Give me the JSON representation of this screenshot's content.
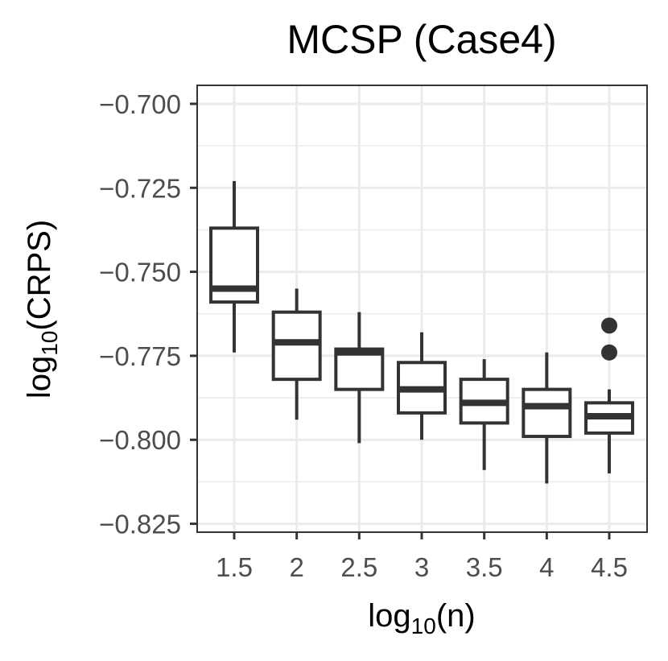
{
  "chart_data": {
    "type": "boxplot",
    "title": "MCSP (Case4)",
    "xlabel": {
      "base": "log",
      "sub": "10",
      "rest": "(n)"
    },
    "ylabel": {
      "base": "log",
      "sub": "10",
      "rest": "(CRPS)"
    },
    "ylim": [
      -0.8275,
      -0.6945
    ],
    "y_ticks": [
      -0.7,
      -0.725,
      -0.75,
      -0.775,
      -0.8,
      -0.825
    ],
    "y_tick_labels": [
      "−0.700",
      "−0.725",
      "−0.750",
      "−0.775",
      "−0.800",
      "−0.825"
    ],
    "categories": [
      "1.5",
      "2",
      "2.5",
      "3",
      "3.5",
      "4",
      "4.5"
    ],
    "boxes": [
      {
        "x": "1.5",
        "whisker_low": -0.774,
        "q1": -0.759,
        "median": -0.755,
        "q3": -0.737,
        "whisker_high": -0.723,
        "outliers": []
      },
      {
        "x": "2",
        "whisker_low": -0.794,
        "q1": -0.782,
        "median": -0.771,
        "q3": -0.762,
        "whisker_high": -0.755,
        "outliers": []
      },
      {
        "x": "2.5",
        "whisker_low": -0.801,
        "q1": -0.785,
        "median": -0.774,
        "q3": -0.773,
        "whisker_high": -0.762,
        "outliers": []
      },
      {
        "x": "3",
        "whisker_low": -0.8,
        "q1": -0.792,
        "median": -0.785,
        "q3": -0.777,
        "whisker_high": -0.768,
        "outliers": []
      },
      {
        "x": "3.5",
        "whisker_low": -0.809,
        "q1": -0.795,
        "median": -0.789,
        "q3": -0.782,
        "whisker_high": -0.776,
        "outliers": []
      },
      {
        "x": "4",
        "whisker_low": -0.813,
        "q1": -0.799,
        "median": -0.79,
        "q3": -0.785,
        "whisker_high": -0.774,
        "outliers": []
      },
      {
        "x": "4.5",
        "whisker_low": -0.81,
        "q1": -0.798,
        "median": -0.793,
        "q3": -0.789,
        "whisker_high": -0.785,
        "outliers": [
          -0.766,
          -0.774
        ]
      }
    ],
    "grid": true,
    "colors": {
      "box_stroke": "#333333",
      "box_fill": "#ffffff",
      "grid": "#ebebeb",
      "panel_border": "#333333"
    }
  }
}
